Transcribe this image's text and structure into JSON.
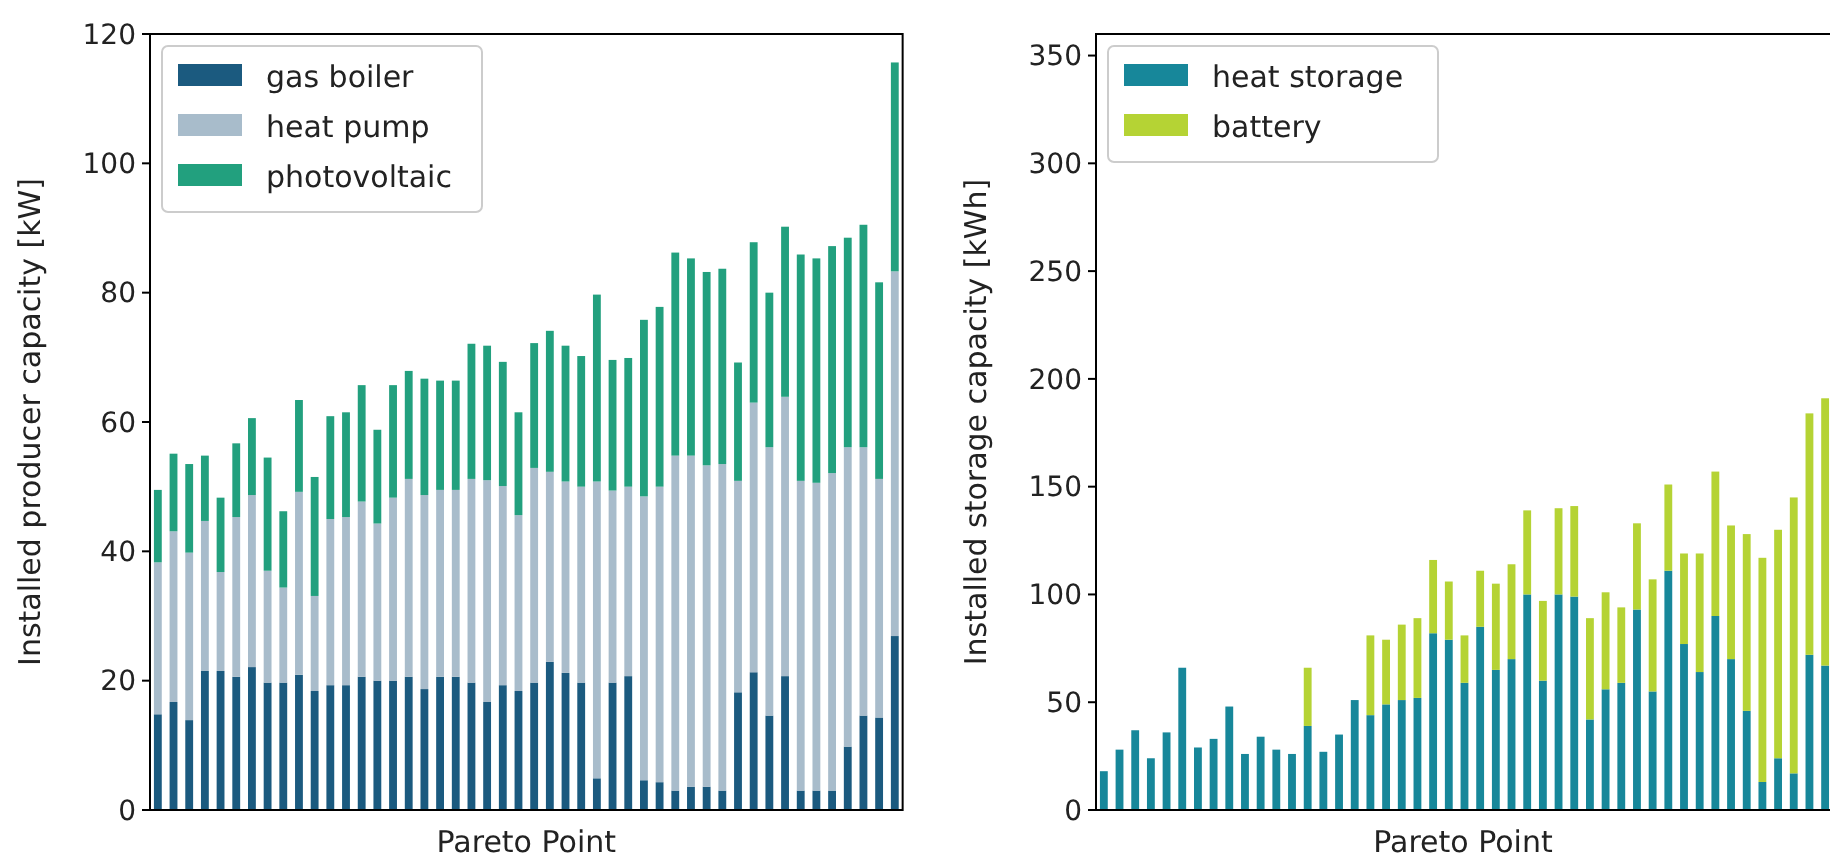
{
  "chart_data": [
    {
      "type": "bar",
      "stacked": true,
      "xlabel": "Pareto Point",
      "ylabel": "Installed producer capacity [kW]",
      "categories": [
        null,
        null,
        null,
        null,
        null,
        null,
        null,
        null,
        null,
        null,
        null,
        null,
        null,
        null,
        null,
        null,
        null,
        null,
        null,
        null,
        null,
        null,
        null,
        null,
        null,
        null,
        null,
        null,
        null,
        null,
        null,
        null,
        null,
        null,
        null,
        null,
        null,
        null,
        null,
        null,
        null,
        null,
        null,
        null,
        null,
        null,
        null,
        null
      ],
      "ylim": [
        0,
        120
      ],
      "yticks": [
        0,
        20,
        40,
        60,
        80,
        100,
        120
      ],
      "legend": "top left",
      "series": [
        {
          "name": "gas boiler",
          "color": "#1b5a7f",
          "values": [
            14.8,
            16.7,
            13.9,
            21.5,
            21.5,
            20.6,
            22.1,
            19.7,
            19.7,
            20.9,
            18.4,
            19.3,
            19.3,
            20.6,
            20.0,
            20.0,
            20.6,
            18.7,
            20.6,
            20.6,
            19.7,
            16.7,
            19.3,
            18.4,
            19.7,
            22.9,
            21.2,
            19.7,
            4.9,
            19.7,
            20.7,
            4.6,
            4.3,
            3.0,
            3.6,
            3.6,
            3.0,
            18.2,
            21.3,
            14.6,
            20.7,
            3.0,
            3.0,
            3.0,
            9.8,
            14.6,
            14.3,
            26.9
          ]
        },
        {
          "name": "heat pump",
          "color": "#a8bccb",
          "values": [
            23.5,
            26.4,
            25.9,
            23.2,
            15.3,
            24.7,
            26.6,
            17.3,
            14.7,
            28.3,
            14.7,
            25.7,
            26.0,
            27.1,
            24.3,
            28.3,
            30.6,
            30.0,
            28.9,
            28.9,
            31.5,
            34.3,
            30.8,
            27.2,
            33.2,
            29.4,
            29.6,
            30.3,
            45.9,
            29.7,
            29.3,
            43.9,
            45.7,
            51.8,
            51.2,
            49.7,
            50.5,
            32.7,
            41.7,
            41.5,
            43.2,
            47.9,
            47.6,
            49.1,
            46.3,
            41.5,
            36.9,
            56.4
          ]
        },
        {
          "name": "photovoltaic",
          "color": "#22a07e",
          "values": [
            11.2,
            12.0,
            13.7,
            10.1,
            11.5,
            11.4,
            11.9,
            17.5,
            11.8,
            14.2,
            18.4,
            15.9,
            16.2,
            18.0,
            14.5,
            17.4,
            16.7,
            18.0,
            16.9,
            16.9,
            20.9,
            20.8,
            19.2,
            15.9,
            19.3,
            21.8,
            21.0,
            20.2,
            28.9,
            20.2,
            19.9,
            27.3,
            27.8,
            31.4,
            30.5,
            29.9,
            30.2,
            18.3,
            24.8,
            23.9,
            26.3,
            35.0,
            34.7,
            35.1,
            32.4,
            34.4,
            30.4,
            32.3
          ]
        }
      ]
    },
    {
      "type": "bar",
      "stacked": true,
      "xlabel": "Pareto Point",
      "ylabel": "Installed storage capacity [kWh]",
      "categories": [
        null,
        null,
        null,
        null,
        null,
        null,
        null,
        null,
        null,
        null,
        null,
        null,
        null,
        null,
        null,
        null,
        null,
        null,
        null,
        null,
        null,
        null,
        null,
        null,
        null,
        null,
        null,
        null,
        null,
        null,
        null,
        null,
        null,
        null,
        null,
        null,
        null,
        null,
        null,
        null,
        null,
        null,
        null,
        null,
        null,
        null,
        null
      ],
      "ylim": [
        0,
        360
      ],
      "yticks": [
        0,
        50,
        100,
        150,
        200,
        250,
        300,
        350
      ],
      "legend": "top left",
      "series": [
        {
          "name": "heat storage",
          "color": "#17879a",
          "values": [
            18,
            28,
            37,
            24,
            36,
            66,
            29,
            33,
            48,
            26,
            34,
            28,
            26,
            39,
            27,
            35,
            51,
            44,
            49,
            51,
            52,
            82,
            79,
            59,
            85,
            65,
            70,
            100,
            60,
            100,
            99,
            42,
            56,
            59,
            93,
            55,
            111,
            77,
            64,
            90,
            70,
            46,
            13,
            24,
            17,
            72,
            67
          ]
        },
        {
          "name": "battery",
          "color": "#b5d334",
          "values": [
            0,
            0,
            0,
            0,
            0,
            0,
            0,
            0,
            0,
            0,
            0,
            0,
            0,
            27,
            0,
            0,
            0,
            37,
            30,
            35,
            37,
            34,
            27,
            22,
            26,
            40,
            44,
            39,
            37,
            40,
            42,
            47,
            45,
            35,
            40,
            52,
            40,
            42,
            55,
            67,
            62,
            82,
            104,
            106,
            128,
            112,
            124
          ]
        }
      ]
    }
  ]
}
